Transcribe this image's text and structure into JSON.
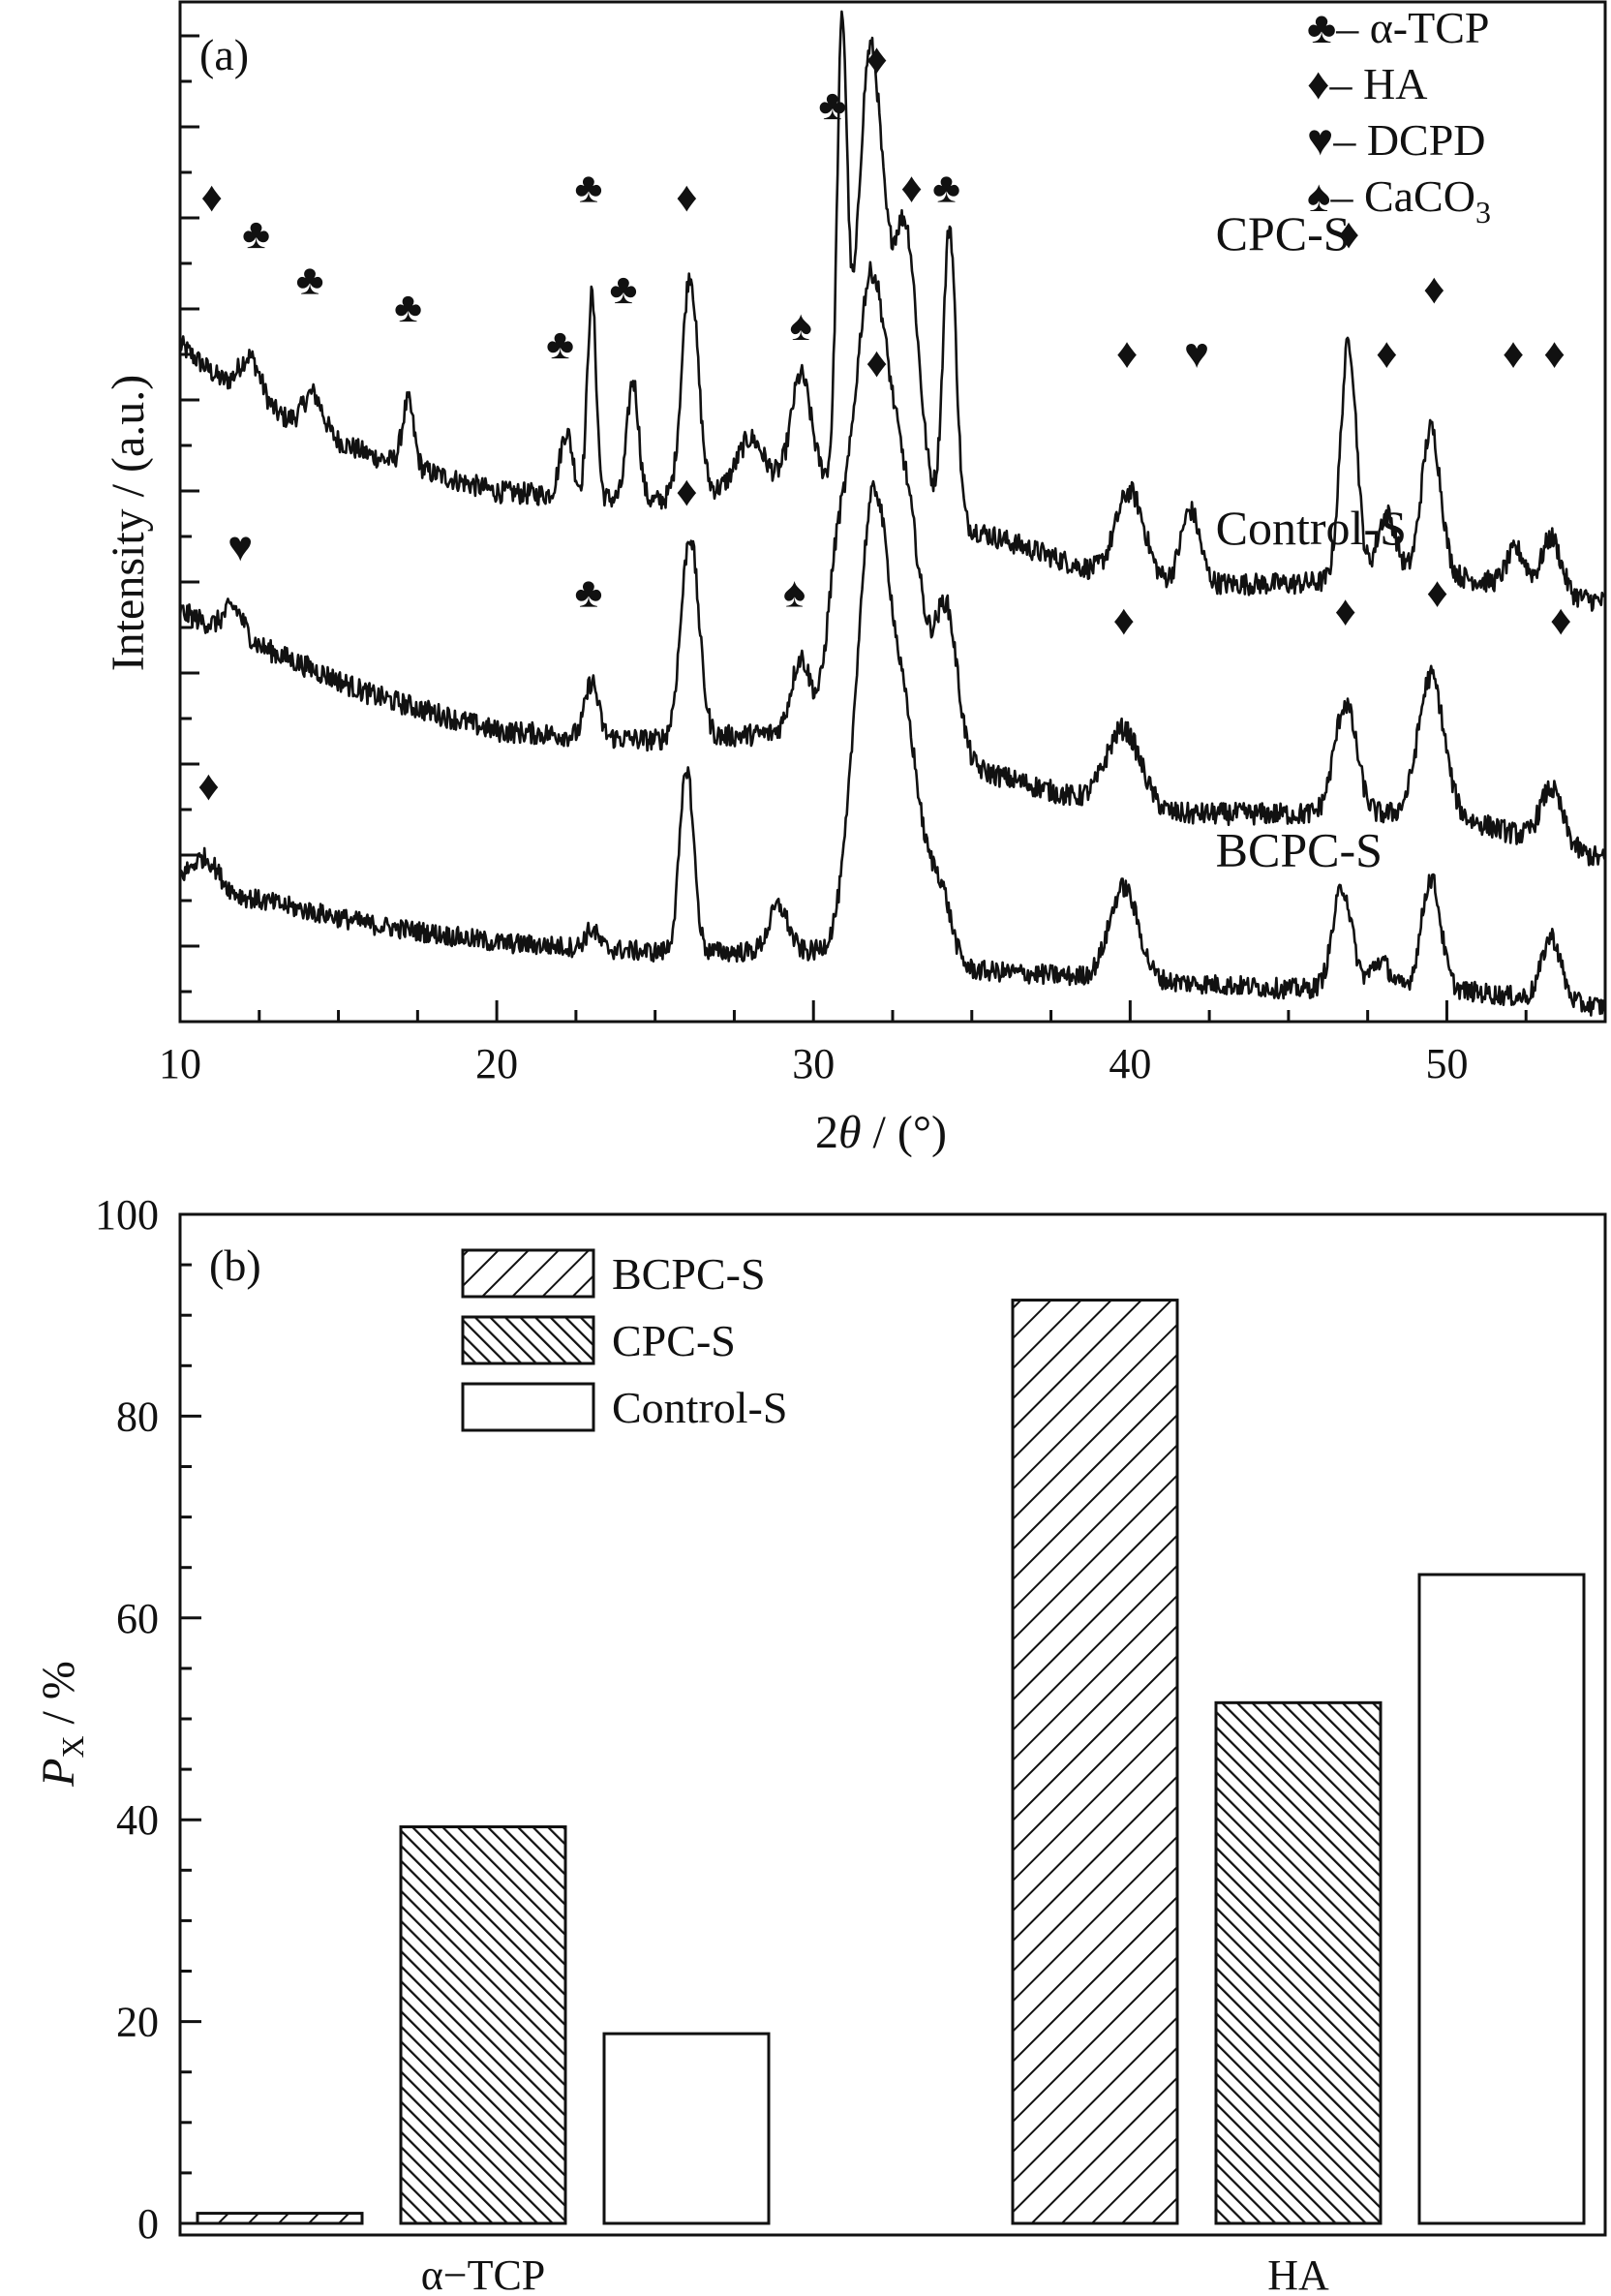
{
  "chart_data": [
    {
      "panel": "(a)",
      "type": "line",
      "xlabel": "2θ / (°)",
      "xlabel_parts": {
        "pre": "2",
        "var": "θ",
        "post": " / (°)"
      },
      "ylabel": "Intensity / (a.u.)",
      "xlim": [
        10,
        55
      ],
      "xticks": [
        10,
        20,
        30,
        40,
        50
      ],
      "legend": {
        "placement": "top-right",
        "entries": [
          {
            "symbol": "♣",
            "dash": "–",
            "label": "α-TCP"
          },
          {
            "symbol": "♦",
            "dash": "–",
            "label": "HA"
          },
          {
            "symbol": "♥",
            "dash": "–",
            "label": "DCPD"
          },
          {
            "symbol": "♠",
            "dash": "–",
            "label": "CaCO",
            "sub": "3"
          }
        ]
      },
      "series": [
        {
          "name": "CPC-S",
          "baseline": [
            [
              10,
              0.72
            ],
            [
              12,
              0.66
            ],
            [
              16,
              0.6
            ],
            [
              20,
              0.56
            ],
            [
              25,
              0.55
            ],
            [
              30,
              0.58
            ],
            [
              35,
              0.52
            ],
            [
              40,
              0.46
            ],
            [
              45,
              0.46
            ],
            [
              50,
              0.47
            ],
            [
              55,
              0.44
            ]
          ],
          "peaks": [
            [
              12.2,
              0.05,
              0.35
            ],
            [
              14.2,
              0.04,
              0.3
            ],
            [
              17.2,
              0.07,
              0.18
            ],
            [
              22.2,
              0.07,
              0.2
            ],
            [
              23.0,
              0.22,
              0.14
            ],
            [
              24.3,
              0.13,
              0.18
            ],
            [
              26.1,
              0.24,
              0.25
            ],
            [
              28.0,
              0.05,
              0.4
            ],
            [
              29.6,
              0.11,
              0.3
            ],
            [
              30.9,
              0.47,
              0.16
            ],
            [
              31.8,
              0.48,
              0.4
            ],
            [
              32.9,
              0.3,
              0.4
            ],
            [
              34.3,
              0.32,
              0.2
            ],
            [
              40.0,
              0.1,
              0.45
            ],
            [
              41.9,
              0.08,
              0.3
            ],
            [
              46.9,
              0.26,
              0.25
            ],
            [
              48.1,
              0.07,
              0.3
            ],
            [
              49.5,
              0.16,
              0.3
            ],
            [
              52.2,
              0.04,
              0.3
            ],
            [
              53.3,
              0.06,
              0.3
            ]
          ],
          "noise": 0.012
        },
        {
          "name": "Control-S",
          "baseline": [
            [
              10,
              0.43
            ],
            [
              12,
              0.4
            ],
            [
              16,
              0.34
            ],
            [
              20,
              0.3
            ],
            [
              25,
              0.29
            ],
            [
              30,
              0.3
            ],
            [
              35,
              0.26
            ],
            [
              40,
              0.21
            ],
            [
              45,
              0.21
            ],
            [
              50,
              0.21
            ],
            [
              55,
              0.16
            ]
          ],
          "peaks": [
            [
              11.7,
              0.03,
              0.3
            ],
            [
              23.0,
              0.06,
              0.2
            ],
            [
              26.1,
              0.22,
              0.28
            ],
            [
              29.6,
              0.08,
              0.3
            ],
            [
              30.7,
              0.12,
              0.3
            ],
            [
              31.8,
              0.5,
              0.6
            ],
            [
              33.0,
              0.22,
              0.5
            ],
            [
              34.2,
              0.16,
              0.35
            ],
            [
              39.8,
              0.09,
              0.55
            ],
            [
              46.8,
              0.12,
              0.35
            ],
            [
              49.5,
              0.15,
              0.4
            ],
            [
              53.3,
              0.06,
              0.35
            ]
          ],
          "noise": 0.012
        },
        {
          "name": "BCPC-S",
          "baseline": [
            [
              10,
              0.14
            ],
            [
              12,
              0.12
            ],
            [
              16,
              0.09
            ],
            [
              20,
              0.07
            ],
            [
              25,
              0.06
            ],
            [
              30,
              0.06
            ],
            [
              35,
              0.04
            ],
            [
              40,
              0.03
            ],
            [
              45,
              0.02
            ],
            [
              50,
              0.02
            ],
            [
              55,
              0.0
            ]
          ],
          "peaks": [
            [
              10.8,
              0.03,
              0.4
            ],
            [
              23.0,
              0.02,
              0.2
            ],
            [
              26.0,
              0.2,
              0.22
            ],
            [
              28.9,
              0.05,
              0.3
            ],
            [
              31.9,
              0.5,
              0.55
            ],
            [
              33.0,
              0.2,
              0.45
            ],
            [
              34.0,
              0.08,
              0.35
            ],
            [
              39.8,
              0.1,
              0.45
            ],
            [
              46.7,
              0.11,
              0.3
            ],
            [
              47.9,
              0.03,
              0.3
            ],
            [
              49.5,
              0.12,
              0.3
            ],
            [
              53.3,
              0.07,
              0.3
            ]
          ],
          "noise": 0.011
        }
      ],
      "annotations": [
        {
          "symbol": "♦",
          "x": 11.0,
          "y": 0.88
        },
        {
          "symbol": "♣",
          "x": 12.4,
          "y": 0.84
        },
        {
          "symbol": "♣",
          "x": 14.1,
          "y": 0.79
        },
        {
          "symbol": "♣",
          "x": 17.2,
          "y": 0.76
        },
        {
          "symbol": "♣",
          "x": 22.0,
          "y": 0.72
        },
        {
          "symbol": "♣",
          "x": 22.9,
          "y": 0.89
        },
        {
          "symbol": "♣",
          "x": 24.0,
          "y": 0.78
        },
        {
          "symbol": "♦",
          "x": 26.0,
          "y": 0.88
        },
        {
          "symbol": "♠",
          "x": 29.6,
          "y": 0.74
        },
        {
          "symbol": "♣",
          "x": 30.6,
          "y": 0.98
        },
        {
          "symbol": "♦",
          "x": 32.0,
          "y": 1.03
        },
        {
          "symbol": "♦",
          "x": 33.1,
          "y": 0.89
        },
        {
          "symbol": "♣",
          "x": 34.2,
          "y": 0.89
        },
        {
          "symbol": "♦",
          "x": 39.9,
          "y": 0.71
        },
        {
          "symbol": "♥",
          "x": 42.1,
          "y": 0.71
        },
        {
          "symbol": "♦",
          "x": 46.9,
          "y": 0.84
        },
        {
          "symbol": "♦",
          "x": 48.1,
          "y": 0.71
        },
        {
          "symbol": "♦",
          "x": 49.6,
          "y": 0.78
        },
        {
          "symbol": "♦",
          "x": 52.1,
          "y": 0.71
        },
        {
          "symbol": "♦",
          "x": 53.4,
          "y": 0.71
        },
        {
          "symbol": "♥",
          "x": 11.9,
          "y": 0.5
        },
        {
          "symbol": "♣",
          "x": 22.9,
          "y": 0.45
        },
        {
          "symbol": "♦",
          "x": 26.0,
          "y": 0.56
        },
        {
          "symbol": "♠",
          "x": 29.4,
          "y": 0.45
        },
        {
          "symbol": "♦",
          "x": 32.0,
          "y": 0.7
        },
        {
          "symbol": "♦",
          "x": 39.8,
          "y": 0.42
        },
        {
          "symbol": "♦",
          "x": 46.8,
          "y": 0.43
        },
        {
          "symbol": "♦",
          "x": 49.7,
          "y": 0.45
        },
        {
          "symbol": "♦",
          "x": 53.6,
          "y": 0.42
        },
        {
          "symbol": "♦",
          "x": 10.9,
          "y": 0.24
        }
      ],
      "sample_labels": [
        {
          "text": "CPC-S",
          "x": 42.7,
          "y": 0.84
        },
        {
          "text": "Control-S",
          "x": 42.7,
          "y": 0.52
        },
        {
          "text": "BCPC-S",
          "x": 42.7,
          "y": 0.17
        }
      ]
    },
    {
      "panel": "(b)",
      "type": "bar",
      "ylabel": "P",
      "ylabel_sub": "X",
      "ylabel_unit": " / %",
      "ylim": [
        0,
        100
      ],
      "yticks": [
        0,
        20,
        40,
        60,
        80,
        100
      ],
      "categories": [
        "α−TCP",
        "HA"
      ],
      "legend": {
        "placement": "top-left"
      },
      "series": [
        {
          "name": "BCPC-S",
          "pattern": "hatch-sparse",
          "values": [
            1,
            91.5
          ]
        },
        {
          "name": "CPC-S",
          "pattern": "hatch-dense",
          "values": [
            39.3,
            51.6
          ]
        },
        {
          "name": "Control-S",
          "pattern": "none",
          "values": [
            18.8,
            64.3
          ]
        }
      ]
    }
  ]
}
